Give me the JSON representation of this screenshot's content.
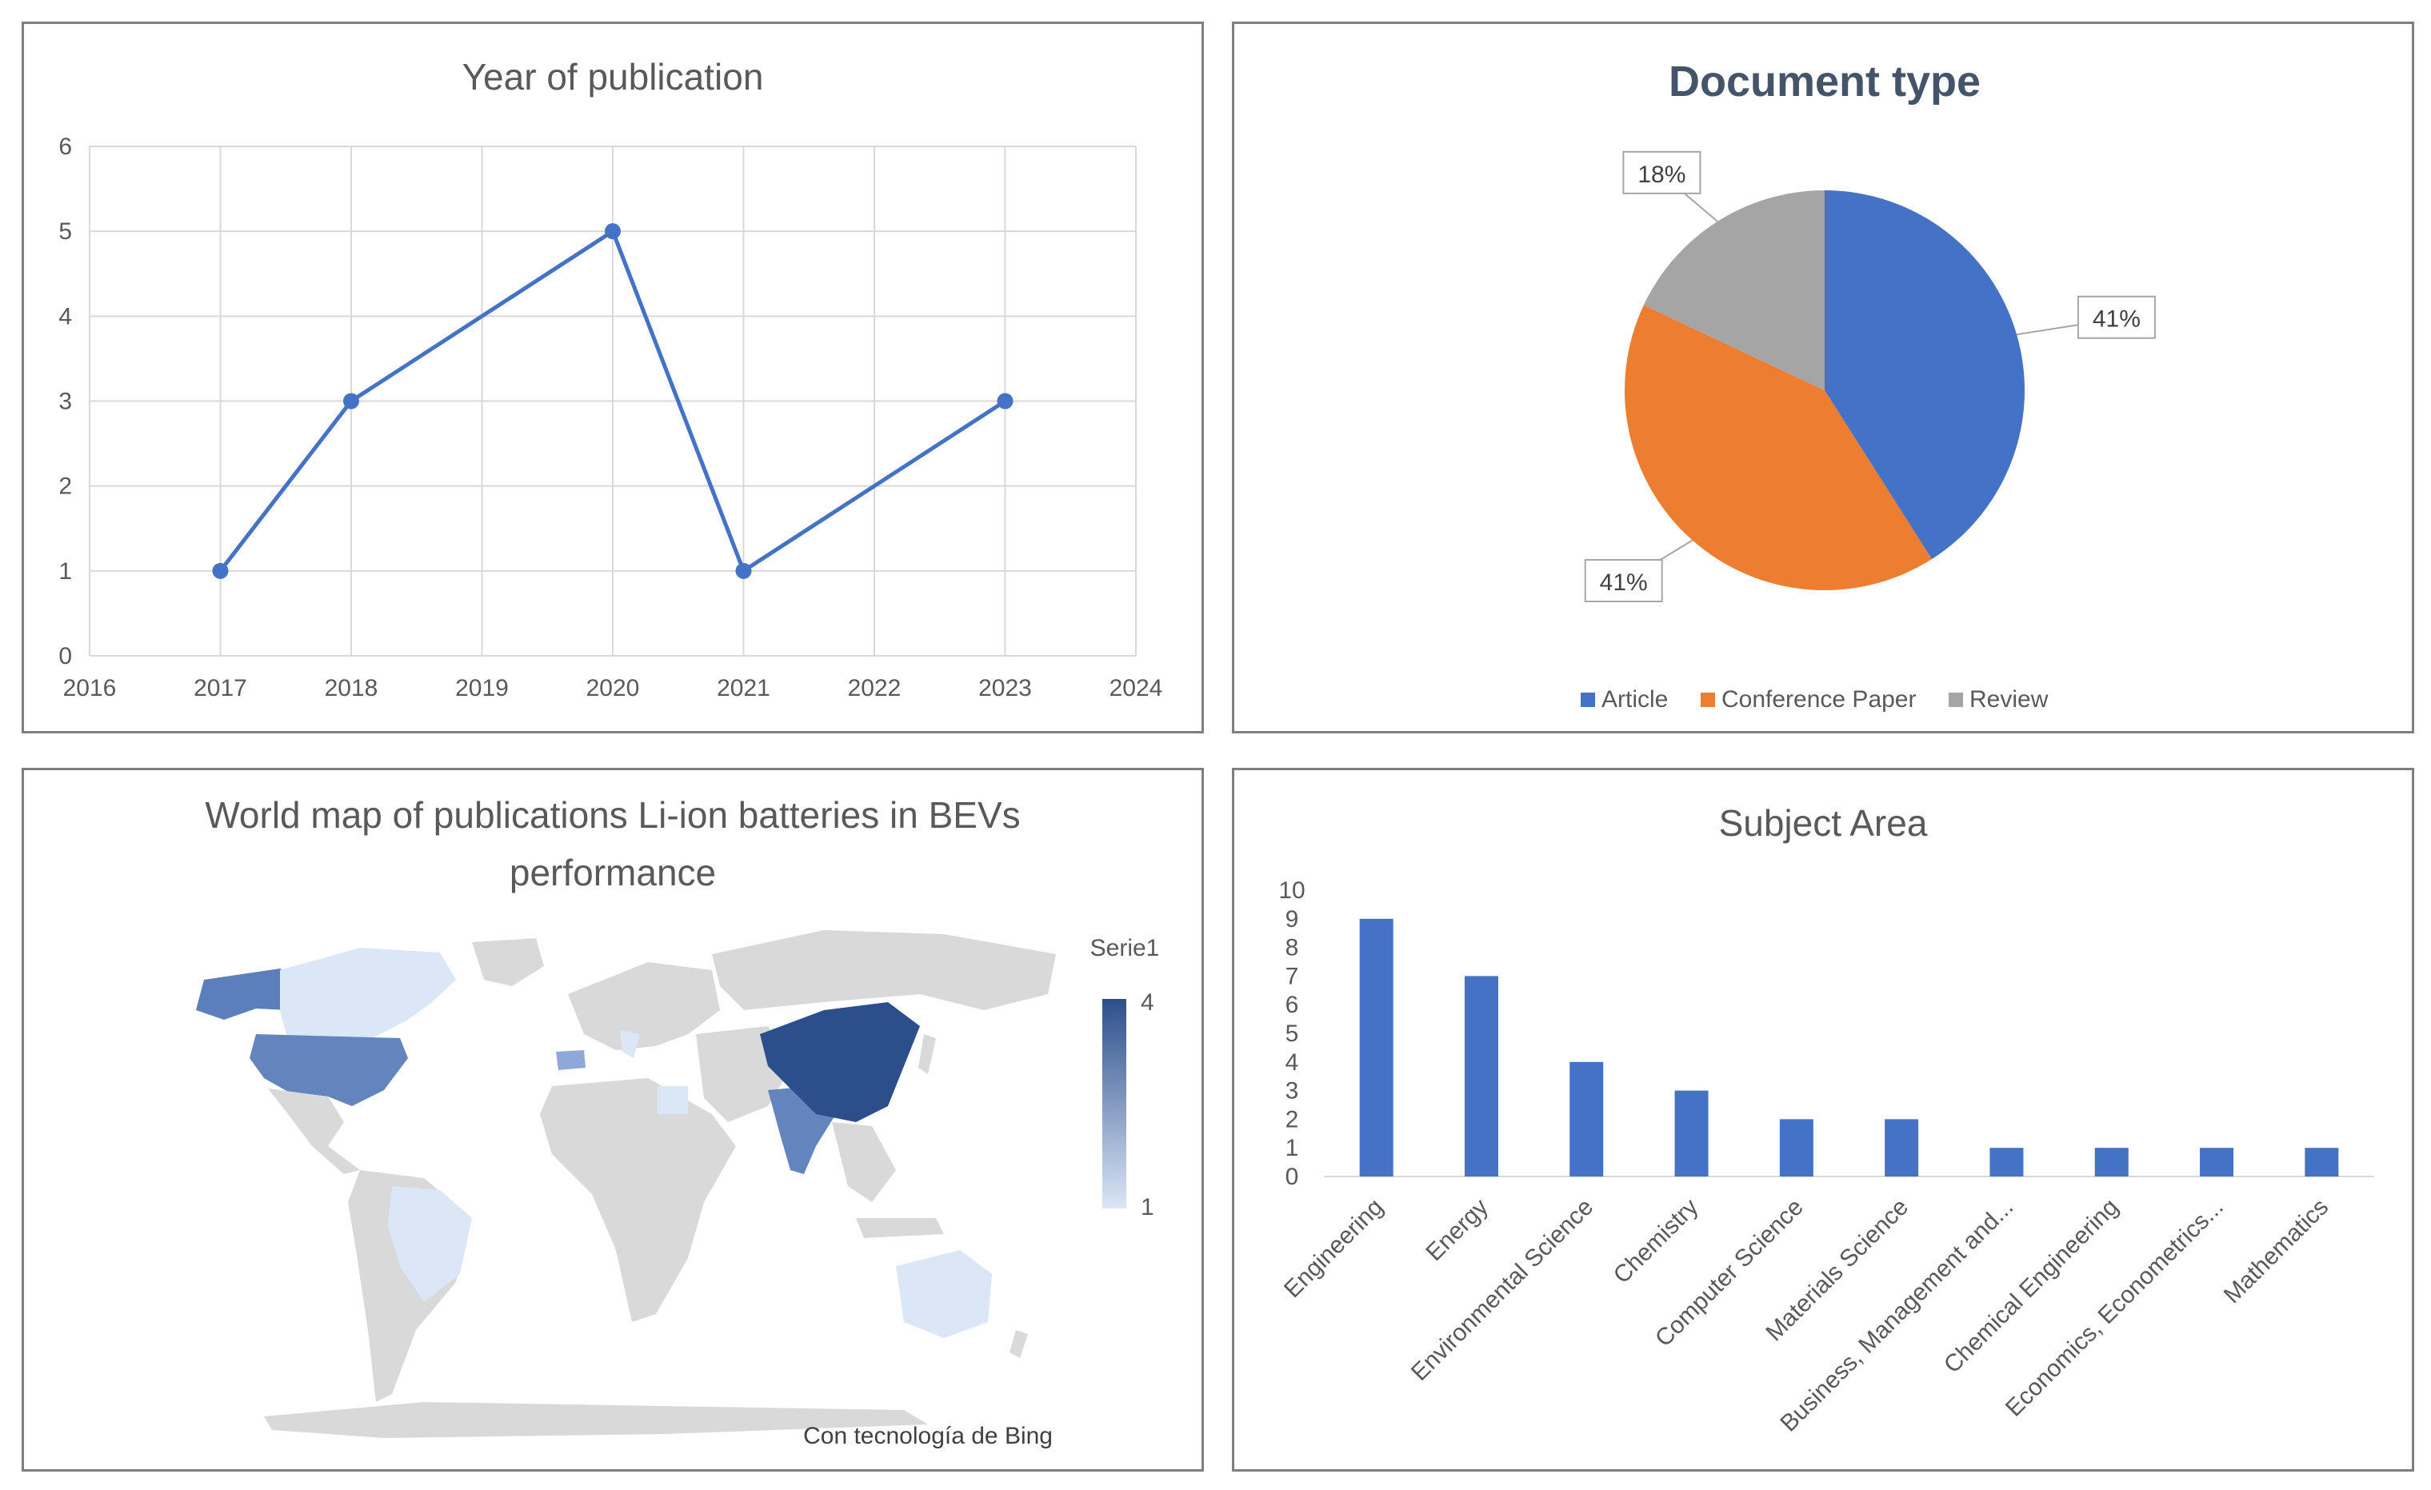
{
  "colors": {
    "blue": "#4472c4",
    "orange": "#ed7d31",
    "gray": "#a5a5a5",
    "map_dark": "#2c4f8c",
    "map_light": "#dbe6f6",
    "map_land": "#d9d9d9"
  },
  "chart_data": [
    {
      "type": "line",
      "title": "Year of publication",
      "x": [
        2017,
        2018,
        2020,
        2021,
        2023
      ],
      "values": [
        1,
        3,
        5,
        1,
        3
      ],
      "xlim": [
        2016,
        2024
      ],
      "ylim": [
        0,
        6
      ],
      "x_ticks": [
        2016,
        2017,
        2018,
        2019,
        2020,
        2021,
        2022,
        2023,
        2024
      ],
      "y_ticks": [
        0,
        1,
        2,
        3,
        4,
        5,
        6
      ],
      "grid": true
    },
    {
      "type": "pie",
      "title": "Document type",
      "categories": [
        "Article",
        "Conference Paper",
        "Review"
      ],
      "values": [
        41,
        41,
        18
      ],
      "data_labels": [
        "41%",
        "41%",
        "18%"
      ],
      "legend_position": "bottom"
    },
    {
      "type": "map",
      "title": "World map of publications Li-ion batteries in BEVs performance",
      "legend_title": "Serie1",
      "legend_max": "4",
      "legend_min": "1",
      "credit": "Con tecnología de Bing"
    },
    {
      "type": "bar",
      "title": "Subject Area",
      "categories": [
        "Engineering",
        "Energy",
        "Environmental Science",
        "Chemistry",
        "Computer Science",
        "Materials Science",
        "Business, Management and...",
        "Chemical Engineering",
        "Economics, Econometrics...",
        "Mathematics"
      ],
      "values": [
        9,
        7,
        4,
        3,
        2,
        2,
        1,
        1,
        1,
        1
      ],
      "ylim": [
        0,
        10
      ],
      "y_ticks": [
        0,
        1,
        2,
        3,
        4,
        5,
        6,
        7,
        8,
        9,
        10
      ]
    }
  ]
}
